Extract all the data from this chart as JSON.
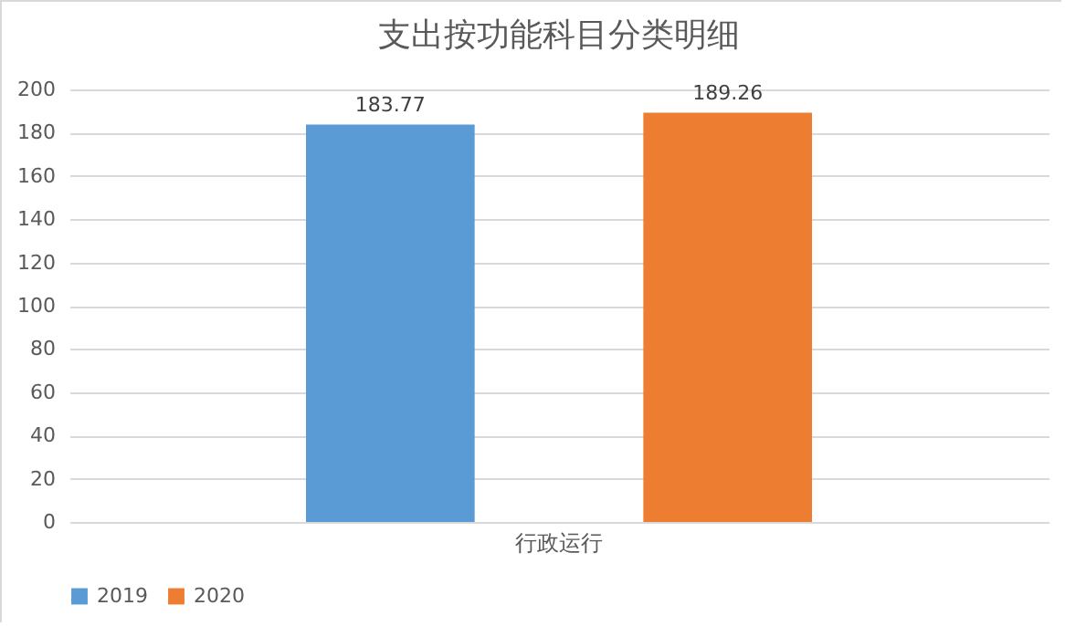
{
  "chart_data": {
    "type": "bar",
    "title": "支出按功能科目分类明细",
    "categories": [
      "行政运行"
    ],
    "series": [
      {
        "name": "2019",
        "color": "#5b9bd5",
        "values": [
          183.77
        ]
      },
      {
        "name": "2020",
        "color": "#ed7d31",
        "values": [
          189.26
        ]
      }
    ],
    "ylim": [
      0,
      200
    ],
    "yticks": [
      0,
      20,
      40,
      60,
      80,
      100,
      120,
      140,
      160,
      180,
      200
    ],
    "grid": "y",
    "legend": "bottom",
    "data_labels": true
  }
}
